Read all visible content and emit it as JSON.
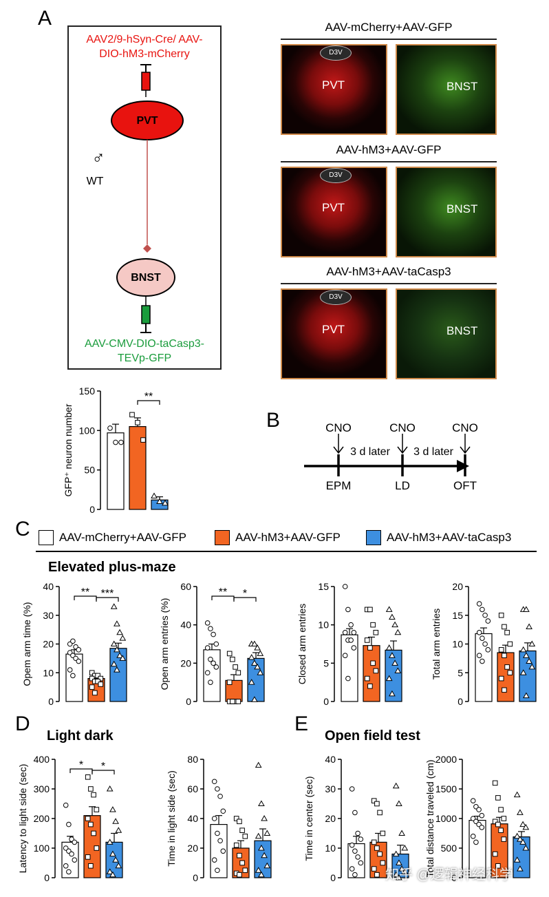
{
  "panels": {
    "A": "A",
    "B": "B",
    "C": "C",
    "D": "D",
    "E": "E"
  },
  "schematic": {
    "virus_top": "AAV2/9-hSyn-Cre/ AAV-DIO-hM3-mCherry",
    "pvt": "PVT",
    "bnst": "BNST",
    "wt_symbol": "♂",
    "wt": "WT",
    "virus_bottom": "AAV-CMV-DIO-taCasp3- TEVp-GFP",
    "colors": {
      "red": "#e8130f",
      "green": "#1a9c3c",
      "line": "#c0504d"
    }
  },
  "micrographs": [
    {
      "title": "AAV-mCherry+AAV-GFP",
      "left_label": "PVT",
      "right_label": "BNST",
      "d3v": "D3V"
    },
    {
      "title": "AAV-hM3+AAV-GFP",
      "left_label": "PVT",
      "right_label": "BNST",
      "d3v": "D3V"
    },
    {
      "title": "AAV-hM3+AAV-taCasp3",
      "left_label": "PVT",
      "right_label": "BNST",
      "d3v": "D3V"
    }
  ],
  "timeline": {
    "cno": "CNO",
    "later1": "3 d later",
    "later2": "3 d later",
    "tests": [
      "EPM",
      "LD",
      "OFT"
    ]
  },
  "legend": [
    {
      "label": "AAV-mCherry+AAV-GFP",
      "color": "#ffffff"
    },
    {
      "label": "AAV-hM3+AAV-GFP",
      "color": "#f26522"
    },
    {
      "label": "AAV-hM3+AAV-taCasp3",
      "color": "#3d8fe0"
    }
  ],
  "section_titles": {
    "epm": "Elevated plus-maze",
    "ld": "Light dark",
    "oft": "Open field test"
  },
  "watermark": "知乎 @逻辑神经科学",
  "chart_data": [
    {
      "id": "gfp",
      "type": "bar",
      "ylabel": "GFP⁺ neuron number",
      "ylim": [
        0,
        150
      ],
      "yticks": [
        0,
        50,
        100,
        150
      ],
      "values": [
        97,
        105,
        12
      ],
      "errors": [
        11,
        11,
        4
      ],
      "points": [
        [
          103,
          85,
          85
        ],
        [
          120,
          110,
          88
        ],
        [
          17,
          10,
          8
        ]
      ],
      "sig": [
        {
          "from": 1,
          "to": 2,
          "label": "**"
        }
      ]
    },
    {
      "id": "epm_time",
      "type": "bar",
      "ylabel": "Opem arm time (%)",
      "ylim": [
        0,
        40
      ],
      "yticks": [
        0,
        10,
        20,
        30,
        40
      ],
      "values": [
        16.5,
        8,
        18.5
      ],
      "errors": [
        1.5,
        1,
        1.8
      ],
      "points": [
        [
          20,
          21,
          19,
          18,
          17,
          16,
          15,
          14,
          11,
          9
        ],
        [
          10,
          9,
          9,
          8,
          8,
          7,
          7,
          6,
          5,
          3
        ],
        [
          33,
          27,
          24,
          22,
          20,
          18,
          16,
          15,
          13,
          11
        ]
      ],
      "sig": [
        {
          "from": 0,
          "to": 1,
          "label": "**"
        },
        {
          "from": 1,
          "to": 2,
          "label": "***"
        }
      ]
    },
    {
      "id": "epm_entries",
      "type": "bar",
      "ylabel": "Open arm entries (%)",
      "ylim": [
        0,
        60
      ],
      "yticks": [
        0,
        20,
        40,
        60
      ],
      "values": [
        27,
        11,
        22.5
      ],
      "errors": [
        3,
        3,
        3
      ],
      "points": [
        [
          41,
          38,
          35,
          30,
          28,
          22,
          20,
          18,
          15,
          10
        ],
        [
          25,
          22,
          18,
          15,
          10,
          0,
          0,
          0,
          0,
          0
        ],
        [
          30,
          30,
          28,
          25,
          23,
          20,
          18,
          15,
          10,
          1
        ]
      ],
      "sig": [
        {
          "from": 0,
          "to": 1,
          "label": "**"
        },
        {
          "from": 1,
          "to": 2,
          "label": "*"
        }
      ]
    },
    {
      "id": "epm_closed",
      "type": "bar",
      "ylabel": "Closed arm entries",
      "ylim": [
        0,
        15
      ],
      "yticks": [
        0,
        5,
        10,
        15
      ],
      "values": [
        8.7,
        7.3,
        6.7
      ],
      "errors": [
        0.8,
        1.1,
        1.2
      ],
      "points": [
        [
          15,
          12,
          10,
          9,
          9,
          8,
          8,
          7,
          6,
          3
        ],
        [
          12,
          12,
          10,
          9,
          8,
          7,
          5,
          4,
          3,
          2
        ],
        [
          12,
          11,
          10,
          9,
          7,
          6,
          5,
          4,
          3,
          1
        ]
      ],
      "sig": []
    },
    {
      "id": "epm_total",
      "type": "bar",
      "ylabel": "Total arm entries",
      "ylim": [
        0,
        20
      ],
      "yticks": [
        0,
        5,
        10,
        15,
        20
      ],
      "values": [
        11.8,
        8.5,
        8.8
      ],
      "errors": [
        1,
        1.3,
        1.4
      ],
      "points": [
        [
          17,
          16,
          15,
          14,
          12,
          11,
          10,
          9,
          8,
          7
        ],
        [
          15,
          13,
          12,
          10,
          9,
          8,
          6,
          5,
          4,
          2
        ],
        [
          16,
          16,
          13,
          10,
          9,
          8,
          7,
          6,
          5,
          1
        ]
      ],
      "sig": []
    },
    {
      "id": "ld_latency",
      "type": "bar",
      "ylabel": "Latency to light side (sec)",
      "ylim": [
        0,
        400
      ],
      "yticks": [
        0,
        100,
        200,
        300,
        400
      ],
      "values": [
        120,
        210,
        120
      ],
      "errors": [
        20,
        30,
        30
      ],
      "points": [
        [
          245,
          180,
          130,
          120,
          100,
          90,
          80,
          60,
          40,
          20
        ],
        [
          340,
          300,
          280,
          230,
          200,
          180,
          150,
          100,
          70,
          40
        ],
        [
          300,
          230,
          190,
          160,
          120,
          80,
          60,
          40,
          20,
          10
        ]
      ],
      "sig": [
        {
          "from": 0,
          "to": 1,
          "label": "*"
        },
        {
          "from": 1,
          "to": 2,
          "label": "*"
        }
      ]
    },
    {
      "id": "ld_time",
      "type": "bar",
      "ylabel": "Time in light side (sec)",
      "ylim": [
        0,
        80
      ],
      "yticks": [
        0,
        20,
        40,
        60,
        80
      ],
      "values": [
        36,
        20,
        25
      ],
      "errors": [
        6,
        5,
        8
      ],
      "points": [
        [
          65,
          60,
          55,
          45,
          40,
          30,
          25,
          18,
          12,
          5
        ],
        [
          40,
          38,
          32,
          28,
          22,
          15,
          10,
          5,
          3,
          2
        ],
        [
          76,
          50,
          40,
          30,
          28,
          20,
          15,
          8,
          5,
          2
        ]
      ],
      "sig": []
    },
    {
      "id": "of_center",
      "type": "bar",
      "ylabel": "Time in center (sec)",
      "ylim": [
        0,
        40
      ],
      "yticks": [
        0,
        10,
        20,
        30,
        40
      ],
      "values": [
        11.5,
        12,
        8
      ],
      "errors": [
        2.5,
        3,
        3
      ],
      "points": [
        [
          30,
          22,
          15,
          13,
          11,
          9,
          7,
          5,
          3,
          1
        ],
        [
          26,
          25,
          22,
          15,
          12,
          10,
          8,
          5,
          3,
          1
        ],
        [
          31,
          25,
          15,
          10,
          8,
          5,
          3,
          2,
          1,
          0
        ]
      ],
      "sig": []
    },
    {
      "id": "of_distance",
      "type": "bar",
      "ylabel": "Total distance traveled (cm)",
      "ylim": [
        0,
        2000
      ],
      "yticks": [
        0,
        500,
        1000,
        1500,
        2000
      ],
      "values": [
        970,
        910,
        690
      ],
      "errors": [
        70,
        110,
        90
      ],
      "points": [
        [
          1300,
          1200,
          1150,
          1050,
          1000,
          950,
          900,
          850,
          700,
          600
        ],
        [
          1600,
          1350,
          1150,
          1000,
          950,
          900,
          800,
          650,
          400,
          200
        ],
        [
          1400,
          1100,
          900,
          850,
          700,
          650,
          600,
          500,
          300,
          150
        ]
      ],
      "sig": []
    }
  ]
}
